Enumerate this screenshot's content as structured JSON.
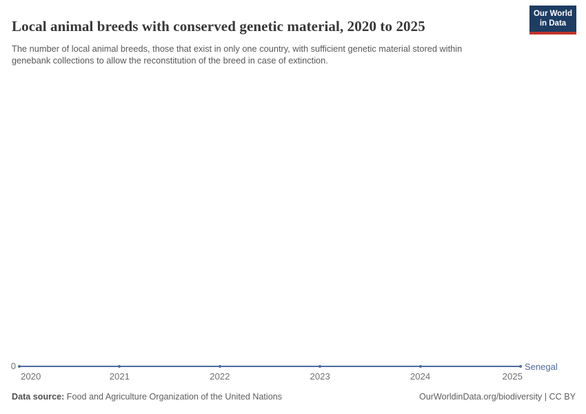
{
  "header": {
    "title": "Local animal breeds with conserved genetic material, 2020 to 2025",
    "subtitle": "The number of local animal breeds, those that exist in only one country, with sufficient genetic material stored within genebank collections to allow the reconstitution of the breed in case of extinction.",
    "logo": {
      "line1": "Our World",
      "line2": "in Data"
    }
  },
  "chart_data": {
    "type": "line",
    "title": "Local animal breeds with conserved genetic material, 2020 to 2025",
    "x": [
      2020,
      2021,
      2022,
      2023,
      2024,
      2025
    ],
    "x_tick_labels": [
      "2020",
      "2021",
      "2022",
      "2023",
      "2024",
      "2025"
    ],
    "series": [
      {
        "name": "Senegal",
        "values": [
          0,
          0,
          0,
          0,
          0,
          0
        ],
        "color": "#4C6A9C"
      }
    ],
    "ylim": [
      0,
      0
    ],
    "y_tick_labels": [
      "0"
    ],
    "grid": false,
    "legend_position": "end-of-line-right",
    "xlabel": "",
    "ylabel": ""
  },
  "footer": {
    "source_label": "Data source:",
    "source_text": "Food and Agriculture Organization of the United Nations",
    "attribution": "OurWorldinData.org/biodiversity | CC BY"
  },
  "colors": {
    "series_line": "#4C6A9C",
    "logo_background": "#1d3d63",
    "logo_stripe": "#c0322b",
    "title_text": "#383838",
    "subtitle_text": "#575757",
    "tick_text": "#6e6e6e",
    "footer_text": "#5d5d5d"
  }
}
